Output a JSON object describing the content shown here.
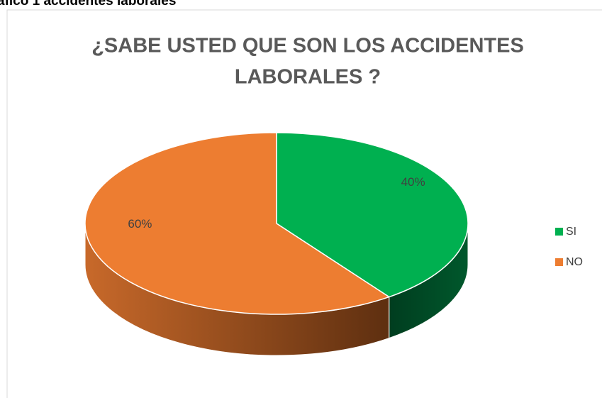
{
  "caption": "áfico 1 accidentes laborales",
  "chart_data": {
    "type": "pie",
    "title": [
      "¿SABE USTED QUE SON LOS ACCIDENTES",
      "LABORALES ?"
    ],
    "categories": [
      "SI",
      "NO"
    ],
    "values": [
      40,
      60
    ],
    "value_labels": [
      "40%",
      "60%"
    ],
    "colors": [
      "#00b050",
      "#ed7d31"
    ],
    "legend": "right"
  }
}
